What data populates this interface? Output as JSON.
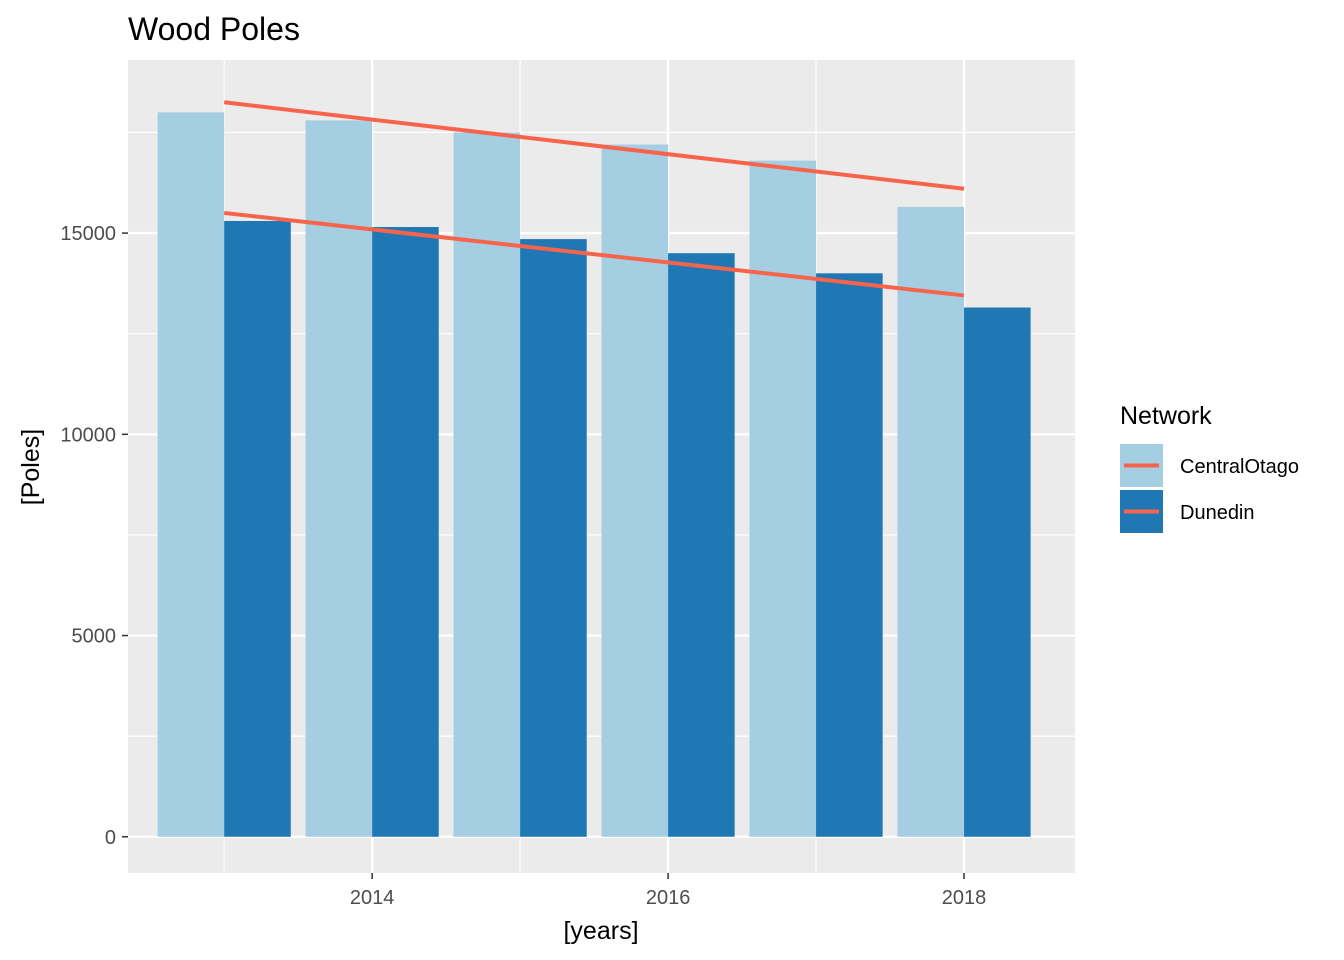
{
  "chart_data": {
    "type": "bar",
    "title": "Wood Poles",
    "xlabel": "[years]",
    "ylabel": "[Poles]",
    "x_ticks": [
      2014,
      2016,
      2018
    ],
    "y_ticks": [
      0,
      5000,
      10000,
      15000
    ],
    "xlim": [
      2012.35,
      2018.75
    ],
    "ylim": [
      -900,
      19300
    ],
    "grid": true,
    "legend": {
      "title": "Network",
      "position": "right"
    },
    "years": [
      2013,
      2014,
      2015,
      2016,
      2017,
      2018
    ],
    "series": [
      {
        "name": "CentralOtago",
        "color": "#a6cee3",
        "offset": -0.225,
        "values": [
          18000,
          17800,
          17500,
          17200,
          16800,
          15650
        ]
      },
      {
        "name": "Dunedin",
        "color": "#1f78b4",
        "offset": 0.225,
        "values": [
          15300,
          15150,
          14850,
          14500,
          14000,
          13150
        ]
      }
    ],
    "trend_lines": [
      {
        "series": "CentralOtago",
        "color": "#f8644b",
        "x": [
          2013,
          2018
        ],
        "y": [
          18250,
          16100
        ]
      },
      {
        "series": "Dunedin",
        "color": "#f8644b",
        "x": [
          2013,
          2018
        ],
        "y": [
          15500,
          13450
        ]
      }
    ]
  }
}
